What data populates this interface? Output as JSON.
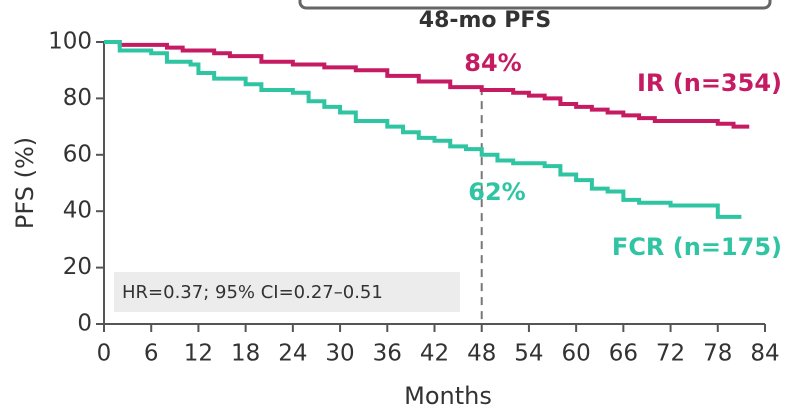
{
  "chart_data": {
    "type": "step",
    "title": "48-mo PFS",
    "x_label": "Months",
    "y_label": "PFS (%)",
    "xlim": [
      0,
      84
    ],
    "ylim": [
      0,
      100
    ],
    "xticks": [
      0,
      6,
      12,
      18,
      24,
      30,
      36,
      42,
      48,
      54,
      60,
      66,
      72,
      78,
      84
    ],
    "yticks": [
      0,
      20,
      40,
      60,
      80,
      100
    ],
    "marker_month": 48,
    "series": [
      {
        "name": "IR (n=354)",
        "color": "#c51b63",
        "x": [
          0,
          2,
          8,
          10,
          14,
          16,
          20,
          24,
          28,
          32,
          36,
          40,
          44,
          48,
          52,
          54,
          56,
          58,
          60,
          62,
          64,
          66,
          68,
          70,
          76,
          78,
          80,
          82
        ],
        "values": [
          100,
          99,
          98,
          97,
          96,
          95,
          93,
          92,
          91,
          90,
          88,
          86,
          84,
          83,
          82,
          81,
          80,
          78,
          77,
          76,
          75,
          74,
          73,
          72,
          72,
          71,
          70,
          70
        ]
      },
      {
        "name": "FCR (n=175)",
        "color": "#2fc4a2",
        "x": [
          0,
          2,
          6,
          8,
          11,
          12,
          14,
          18,
          20,
          24,
          26,
          28,
          30,
          32,
          34,
          36,
          38,
          40,
          42,
          44,
          46,
          48,
          50,
          52,
          56,
          58,
          60,
          62,
          64,
          66,
          68,
          72,
          76,
          78,
          81
        ],
        "values": [
          100,
          97,
          96,
          93,
          92,
          89,
          87,
          85,
          83,
          82,
          79,
          77,
          75,
          72,
          72,
          70,
          68,
          66,
          65,
          63,
          62,
          60,
          58,
          57,
          56,
          53,
          51,
          48,
          47,
          44,
          43,
          42,
          42,
          38,
          38
        ]
      }
    ],
    "annotations": [
      "84%",
      "62%"
    ],
    "note": "HR=0.37; 95% CI=0.27–0.51"
  }
}
